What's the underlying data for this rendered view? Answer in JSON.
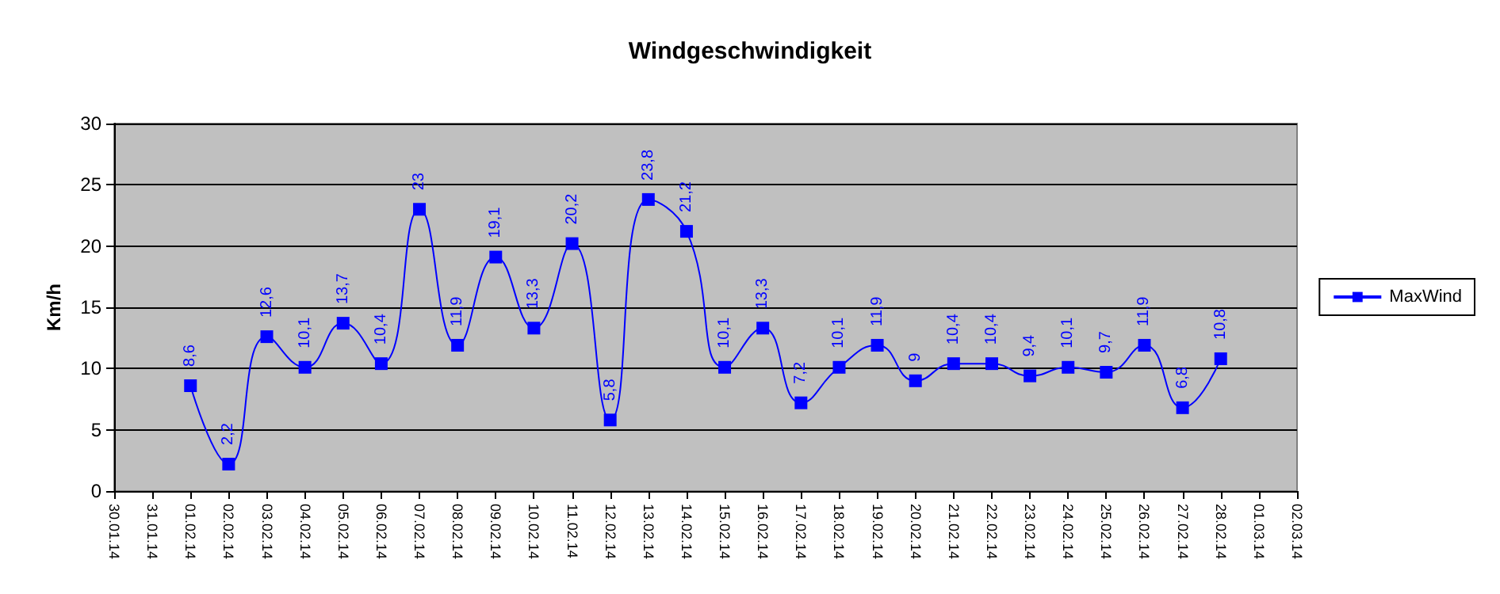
{
  "chart_data": {
    "type": "line",
    "title": "Windgeschwindigkeit",
    "ylabel": "Km/h",
    "categories": [
      "30.01.14",
      "31.01.14",
      "01.02.14",
      "02.02.14",
      "03.02.14",
      "04.02.14",
      "05.02.14",
      "06.02.14",
      "07.02.14",
      "08.02.14",
      "09.02.14",
      "10.02.14",
      "11.02.14",
      "12.02.14",
      "13.02.14",
      "14.02.14",
      "15.02.14",
      "16.02.14",
      "17.02.14",
      "18.02.14",
      "19.02.14",
      "20.02.14",
      "21.02.14",
      "22.02.14",
      "23.02.14",
      "24.02.14",
      "25.02.14",
      "26.02.14",
      "27.02.14",
      "28.02.14",
      "01.03.14",
      "02.03.14"
    ],
    "series": [
      {
        "name": "MaxWind",
        "color": "#0000ff",
        "values": [
          null,
          null,
          8.6,
          2.2,
          12.6,
          10.1,
          13.7,
          10.4,
          23,
          11.9,
          19.1,
          13.3,
          20.2,
          5.8,
          23.8,
          21.2,
          10.1,
          13.3,
          7.2,
          10.1,
          11.9,
          9,
          10.4,
          10.4,
          9.4,
          10.1,
          9.7,
          11.9,
          6.8,
          10.8,
          null,
          null
        ],
        "value_labels": [
          null,
          null,
          "8,6",
          "2,2",
          "12,6",
          "10,1",
          "13,7",
          "10,4",
          "23",
          "11,9",
          "19,1",
          "13,3",
          "20,2",
          "5,8",
          "23,8",
          "21,2",
          "10,1",
          "13,3",
          "7,2",
          "10,1",
          "11,9",
          "9",
          "10,4",
          "10,4",
          "9,4",
          "10,1",
          "9,7",
          "11,9",
          "6,8",
          "10,8",
          null,
          null
        ]
      }
    ],
    "ylim": [
      0,
      30
    ],
    "yticks": [
      0,
      5,
      10,
      15,
      20,
      25,
      30
    ],
    "grid": "y",
    "legend": "right",
    "marker": "square",
    "line_style": "solid"
  }
}
